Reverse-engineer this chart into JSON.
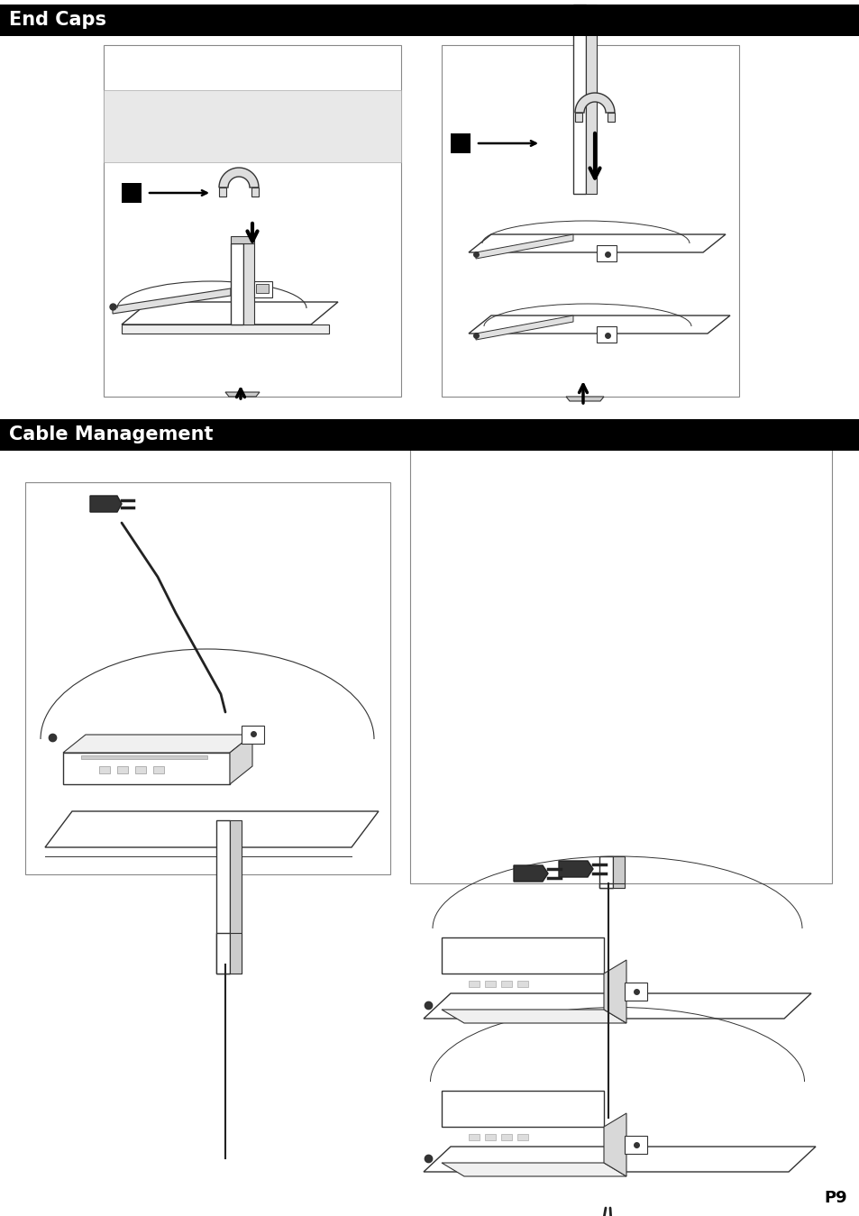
{
  "title_end_caps": "End Caps",
  "title_cable_management": "Cable Management",
  "page_number": "P9",
  "bg_color": "#ffffff",
  "header_bg": "#000000",
  "header_text_color": "#ffffff",
  "header_font_size": 15,
  "page_num_font_size": 13,
  "line_color": "#333333",
  "light_gray": "#e8e8e8",
  "mid_gray": "#aaaaaa",
  "dark_line": "#222222"
}
